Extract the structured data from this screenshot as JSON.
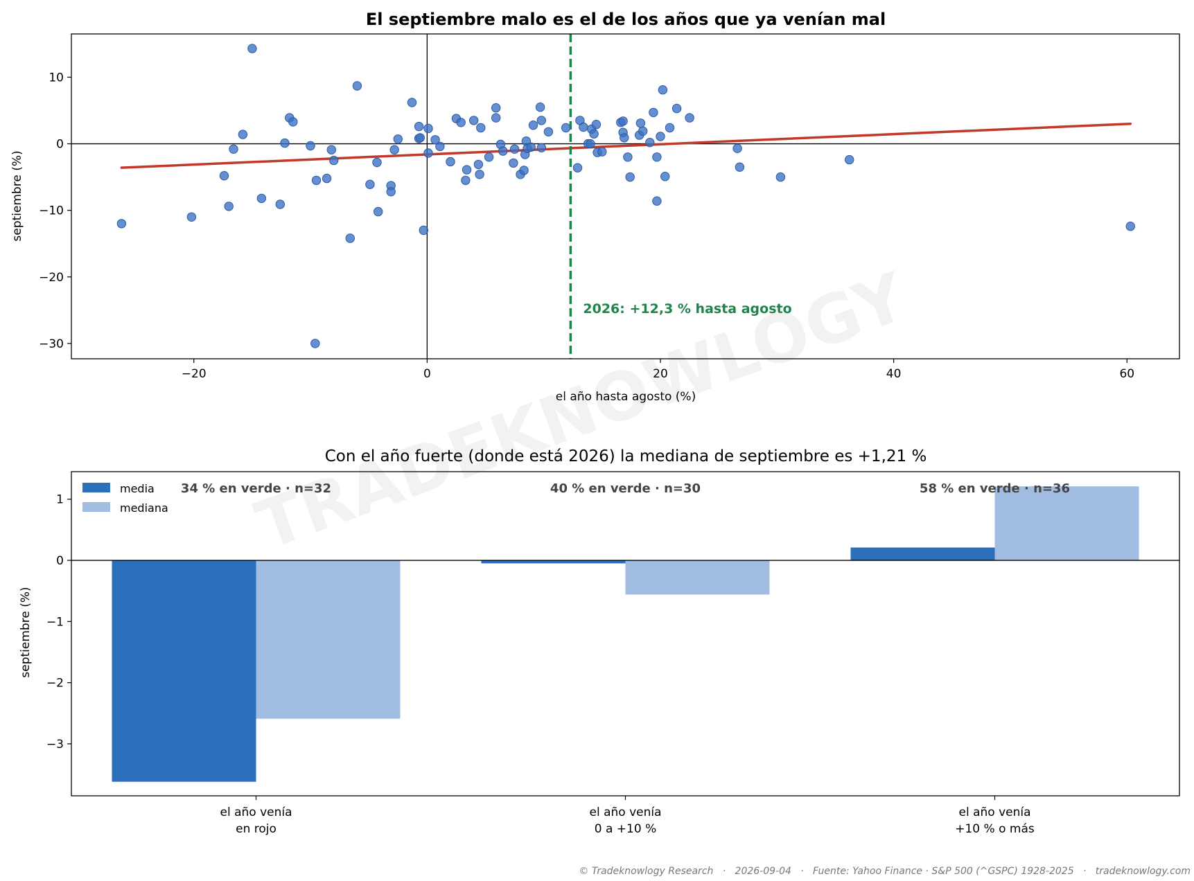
{
  "watermark": "TRADEKNOWLOGY",
  "footer": "© Tradeknowlogy Research   ·   2026-09-04   ·   Fuente: Yahoo Finance · S&P 500 (^GSPC) 1928-2025   ·   tradeknowlogy.com",
  "colors": {
    "points": "#3a6fc4",
    "trend": "#c0392b",
    "marker_line": "#1e8449",
    "bar_mean": "#2c6fbb",
    "bar_median": "#a1bee2"
  },
  "chart_data": [
    {
      "type": "scatter",
      "title": "El septiembre malo es el de los años que ya venían mal",
      "xlabel": "el año hasta agosto (%)",
      "ylabel": "septiembre (%)",
      "xlim": [
        -30.5,
        64.5
      ],
      "ylim": [
        -32.3,
        16.5
      ],
      "xticks": [
        -20,
        0,
        20,
        40,
        60
      ],
      "yticks": [
        -30,
        -20,
        -10,
        0,
        10
      ],
      "reference_lines": {
        "x": 0,
        "y": 0
      },
      "trend_line": [
        [
          -26.2,
          -3.6
        ],
        [
          60.3,
          3.0
        ]
      ],
      "marker": {
        "x": 12.3,
        "label": "2026: +12,3 % hasta agosto"
      },
      "grid": false,
      "points": [
        [
          -26.2,
          -12.0
        ],
        [
          -20.2,
          -11.0
        ],
        [
          -17.4,
          -4.8
        ],
        [
          -17.0,
          -9.4
        ],
        [
          -16.6,
          -0.8
        ],
        [
          -15.8,
          1.4
        ],
        [
          -15.0,
          14.3
        ],
        [
          -14.2,
          -8.2
        ],
        [
          -12.6,
          -9.1
        ],
        [
          -12.2,
          0.1
        ],
        [
          -11.8,
          3.9
        ],
        [
          -11.5,
          3.3
        ],
        [
          -10.0,
          -0.3
        ],
        [
          -9.6,
          -30.0
        ],
        [
          -9.5,
          -5.5
        ],
        [
          -8.6,
          -5.2
        ],
        [
          -8.2,
          -0.9
        ],
        [
          -8.0,
          -2.5
        ],
        [
          -6.6,
          -14.2
        ],
        [
          -6.0,
          8.7
        ],
        [
          -4.9,
          -6.1
        ],
        [
          -4.3,
          -2.8
        ],
        [
          -4.2,
          -10.2
        ],
        [
          -3.1,
          -6.3
        ],
        [
          -3.1,
          -7.2
        ],
        [
          -2.8,
          -0.9
        ],
        [
          -2.5,
          0.7
        ],
        [
          -1.3,
          6.2
        ],
        [
          -0.7,
          2.6
        ],
        [
          -0.7,
          0.8
        ],
        [
          -0.6,
          0.9
        ],
        [
          -0.3,
          -13.0
        ],
        [
          0.1,
          2.3
        ],
        [
          0.1,
          -1.4
        ],
        [
          0.7,
          0.6
        ],
        [
          1.1,
          -0.4
        ],
        [
          2.0,
          -2.7
        ],
        [
          2.5,
          3.8
        ],
        [
          2.9,
          3.2
        ],
        [
          3.3,
          -5.5
        ],
        [
          3.4,
          -3.9
        ],
        [
          4.0,
          3.5
        ],
        [
          4.4,
          -3.1
        ],
        [
          4.5,
          -4.6
        ],
        [
          4.6,
          2.4
        ],
        [
          5.3,
          -2.0
        ],
        [
          5.9,
          5.4
        ],
        [
          5.9,
          3.9
        ],
        [
          6.3,
          -0.1
        ],
        [
          6.5,
          -1.1
        ],
        [
          7.4,
          -2.9
        ],
        [
          7.5,
          -0.8
        ],
        [
          8.0,
          -4.6
        ],
        [
          8.3,
          -4.0
        ],
        [
          8.4,
          -1.6
        ],
        [
          8.5,
          0.4
        ],
        [
          8.6,
          -0.7
        ],
        [
          8.9,
          -0.5
        ],
        [
          9.1,
          2.8
        ],
        [
          9.7,
          5.5
        ],
        [
          9.8,
          3.5
        ],
        [
          9.8,
          -0.6
        ],
        [
          10.4,
          1.8
        ],
        [
          11.9,
          2.4
        ],
        [
          12.9,
          -3.6
        ],
        [
          13.1,
          3.5
        ],
        [
          13.4,
          2.5
        ],
        [
          13.8,
          0.0
        ],
        [
          14.0,
          0.0
        ],
        [
          14.1,
          2.2
        ],
        [
          14.3,
          1.5
        ],
        [
          14.5,
          2.9
        ],
        [
          14.6,
          -1.3
        ],
        [
          15.0,
          -1.2
        ],
        [
          16.6,
          3.2
        ],
        [
          16.8,
          1.7
        ],
        [
          16.8,
          3.4
        ],
        [
          16.9,
          0.9
        ],
        [
          17.2,
          -2.0
        ],
        [
          17.4,
          -5.0
        ],
        [
          18.2,
          1.3
        ],
        [
          18.3,
          3.1
        ],
        [
          18.5,
          1.9
        ],
        [
          19.1,
          0.2
        ],
        [
          19.4,
          4.7
        ],
        [
          19.7,
          -2.0
        ],
        [
          19.7,
          -8.6
        ],
        [
          20.0,
          1.1
        ],
        [
          20.2,
          8.1
        ],
        [
          20.4,
          -4.9
        ],
        [
          20.8,
          2.4
        ],
        [
          21.4,
          5.3
        ],
        [
          22.5,
          3.9
        ],
        [
          26.6,
          -0.7
        ],
        [
          26.8,
          -3.5
        ],
        [
          30.3,
          -5.0
        ],
        [
          36.2,
          -2.4
        ],
        [
          60.3,
          -12.4
        ]
      ]
    },
    {
      "type": "bar",
      "title": "Con el año fuerte (donde está 2026) la mediana de septiembre es +1,21 %",
      "xlabel": "",
      "ylabel": "septiembre (%)",
      "ylim": [
        -3.85,
        1.45
      ],
      "yticks": [
        -3,
        -2,
        -1,
        0,
        1
      ],
      "grid": false,
      "legend_position": "top-left",
      "categories": [
        "el año venía\nen rojo",
        "el año venía\n0 a +10 %",
        "el año venía\n+10 % o más"
      ],
      "annotations": [
        "34 % en verde · n=32",
        "40 % en verde · n=30",
        "58 % en verde · n=36"
      ],
      "series": [
        {
          "name": "media",
          "values": [
            -3.62,
            -0.05,
            0.21
          ]
        },
        {
          "name": "mediana",
          "values": [
            -2.59,
            -0.56,
            1.21
          ]
        }
      ]
    }
  ]
}
